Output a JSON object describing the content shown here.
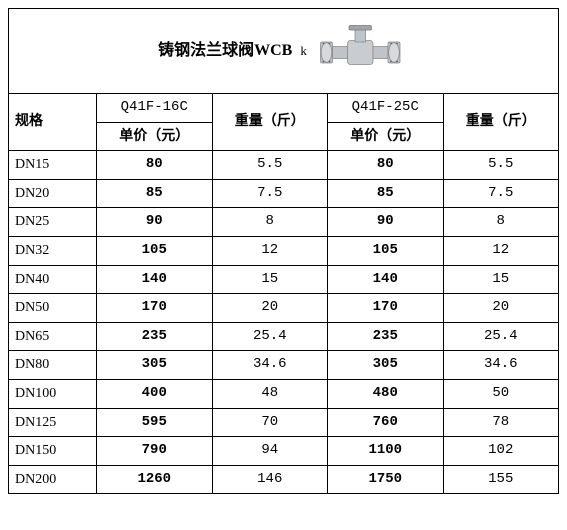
{
  "title": "铸钢法兰球阀WCB",
  "title_suffix": "k",
  "columns": {
    "spec": "规格",
    "model1": "Q41F-16C",
    "model2": "Q41F-25C",
    "unit_price": "单价（元）",
    "weight": "重量（斤）"
  },
  "rows": [
    {
      "spec": "DN15",
      "p1": "80",
      "w1": "5.5",
      "p2": "80",
      "w2": "5.5"
    },
    {
      "spec": "DN20",
      "p1": "85",
      "w1": "7.5",
      "p2": "85",
      "w2": "7.5"
    },
    {
      "spec": "DN25",
      "p1": "90",
      "w1": "8",
      "p2": "90",
      "w2": "8"
    },
    {
      "spec": "DN32",
      "p1": "105",
      "w1": "12",
      "p2": "105",
      "w2": "12"
    },
    {
      "spec": "DN40",
      "p1": "140",
      "w1": "15",
      "p2": "140",
      "w2": "15"
    },
    {
      "spec": "DN50",
      "p1": "170",
      "w1": "20",
      "p2": "170",
      "w2": "20"
    },
    {
      "spec": "DN65",
      "p1": "235",
      "w1": "25.4",
      "p2": "235",
      "w2": "25.4"
    },
    {
      "spec": "DN80",
      "p1": "305",
      "w1": "34.6",
      "p2": "305",
      "w2": "34.6"
    },
    {
      "spec": "DN100",
      "p1": "400",
      "w1": "48",
      "p2": "480",
      "w2": "50"
    },
    {
      "spec": "DN125",
      "p1": "595",
      "w1": "70",
      "p2": "760",
      "w2": "78"
    },
    {
      "spec": "DN150",
      "p1": "790",
      "w1": "94",
      "p2": "1100",
      "w2": "102"
    },
    {
      "spec": "DN200",
      "p1": "1260",
      "w1": "146",
      "p2": "1750",
      "w2": "155"
    }
  ],
  "col_widths": [
    "16%",
    "21%",
    "21%",
    "21%",
    "21%"
  ],
  "colors": {
    "border": "#000000",
    "background": "#ffffff",
    "text": "#000000",
    "valve_body": "#bfc4c9",
    "valve_shadow": "#8a9096"
  }
}
